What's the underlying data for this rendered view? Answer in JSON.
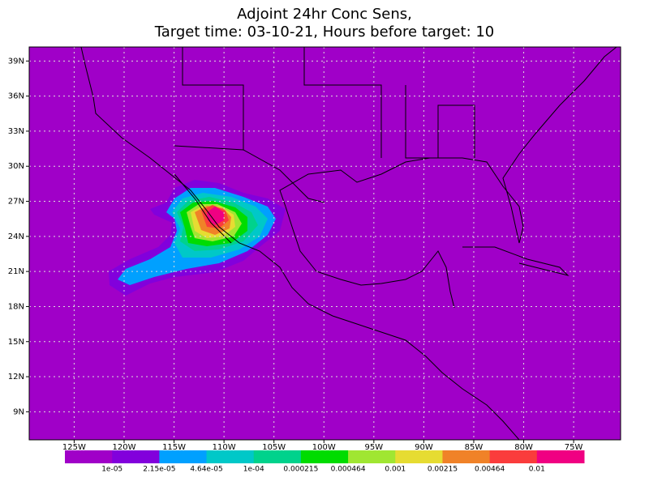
{
  "map": {
    "title": "Adjoint 24hr Conc Sens,",
    "subtitle": "Target time: 03-10-21, Hours before target: 10",
    "lat_range": [
      6.6,
      40.2
    ],
    "lon_range": [
      -129.5,
      -70.3
    ],
    "lat_ticks": [
      {
        "value": 39,
        "label": "39N"
      },
      {
        "value": 36,
        "label": "36N"
      },
      {
        "value": 33,
        "label": "33N"
      },
      {
        "value": 30,
        "label": "30N"
      },
      {
        "value": 27,
        "label": "27N"
      },
      {
        "value": 24,
        "label": "24N"
      },
      {
        "value": 21,
        "label": "21N"
      },
      {
        "value": 18,
        "label": "18N"
      },
      {
        "value": 15,
        "label": "15N"
      },
      {
        "value": 12,
        "label": "12N"
      },
      {
        "value": 9,
        "label": "9N"
      }
    ],
    "lon_ticks": [
      {
        "value": -125,
        "label": "125W"
      },
      {
        "value": -120,
        "label": "120W"
      },
      {
        "value": -115,
        "label": "115W"
      },
      {
        "value": -110,
        "label": "110W"
      },
      {
        "value": -105,
        "label": "105W"
      },
      {
        "value": -100,
        "label": "100W"
      },
      {
        "value": -95,
        "label": "95W"
      },
      {
        "value": -90,
        "label": "90W"
      },
      {
        "value": -85,
        "label": "85W"
      },
      {
        "value": -80,
        "label": "80W"
      },
      {
        "value": -75,
        "label": "75W"
      }
    ],
    "grid": true,
    "colorbar": {
      "colors": [
        "#a000c8",
        "#8200dc",
        "#00a0ff",
        "#00c8c8",
        "#00d28c",
        "#00dc00",
        "#a0e632",
        "#e6dc32",
        "#f08228",
        "#fa3c3c",
        "#f00082"
      ],
      "labels": [
        "1e-05",
        "2.15e-05",
        "4.64e-05",
        "1e-04",
        "0.000215",
        "0.000464",
        "0.001",
        "0.00215",
        "0.00464",
        "0.01"
      ]
    }
  }
}
